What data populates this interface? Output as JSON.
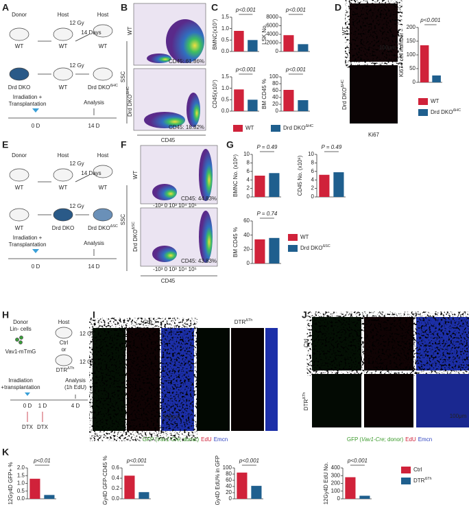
{
  "panel_labels": [
    "A",
    "B",
    "C",
    "D",
    "E",
    "F",
    "G",
    "H",
    "I",
    "J",
    "K"
  ],
  "A": {
    "texts": [
      "Donor",
      "Host",
      "Host",
      "12 Gy",
      "WT",
      "WT",
      "WT",
      "14 Days",
      "12 Gy",
      {
        "text": "Drd DKO"
      },
      "WT",
      {
        "text": "Drd DKO",
        "sup": "ΔHC"
      },
      "Irradiation +",
      "Transplantation",
      "Analysis",
      "0 D",
      "14 D"
    ]
  },
  "E": {
    "texts": [
      "Donor",
      "Host",
      "Host",
      "12 Gy",
      "WT",
      "WT",
      "WT",
      "14 Days",
      "12 Gy",
      "WT",
      {
        "text": "Drd DKO"
      },
      {
        "text": "Drd DKO",
        "sup": "ΔSC"
      },
      "Irradiation +",
      "Transplantation",
      "Analysis",
      "0 D",
      "14 D"
    ]
  },
  "H": {
    "texts": [
      "Donor",
      "Host",
      "Lin- cells",
      "12 Gy",
      "Ctrl",
      "or",
      "Vav1-mTmG",
      "12 Gy",
      {
        "text": "DTR",
        "sup": "ΔTh"
      },
      "Irradiation",
      "+transplantation",
      "Analysis",
      "(1h EdU)",
      "0 D",
      "1 D",
      "4 D",
      "DTX",
      "DTX"
    ]
  },
  "B": {
    "texts": [
      "WT",
      {
        "text": "Drd DKO",
        "sup": "ΔHC"
      },
      "SSC",
      "CD45",
      "CD45: 61.86%",
      "CD45: 18.82%"
    ]
  },
  "F": {
    "texts": [
      "WT",
      {
        "text": "Drd DKO",
        "sup": "ΔSC"
      },
      "SSC",
      "CD45",
      "CD45: 44.83%",
      "CD45: 43.83%",
      "-10³ 0 10³ 10⁴ 10⁵",
      "-10³ 0 10³ 10⁴ 10⁵"
    ]
  },
  "D": {
    "texts": [
      "WT",
      {
        "text": "Drd DKO",
        "sup": "ΔHC"
      },
      "100μm",
      "Ki67"
    ]
  },
  "I": {
    "texts": [
      "Ctrl",
      {
        "text": "DTR",
        "sup": "ΔTh"
      },
      "500μm"
    ]
  },
  "J": {
    "texts": [
      "Ctrl",
      {
        "text": "DTR",
        "sup": "ΔTh"
      },
      "100μm"
    ]
  },
  "captions": [
    [
      {
        "text": "GFP (",
        "color": "#3a9a2a"
      },
      {
        "text": "Vav1-Cre",
        "color": "#3a9a2a"
      },
      {
        "text": "; donor)",
        "color": "#3a9a2a"
      },
      {
        "text": "EdU",
        "color": "#d0223a"
      },
      {
        "text": "Emcn",
        "color": "#2a3fbf"
      }
    ],
    [
      {
        "text": "GFP (",
        "color": "#3a9a2a"
      },
      {
        "text": "Vav1-Cre",
        "color": "#3a9a2a"
      },
      {
        "text": "; donor)",
        "color": "#3a9a2a"
      },
      {
        "text": "EdU",
        "color": "#d0223a"
      },
      {
        "text": "Emcn",
        "color": "#2a3fbf"
      }
    ]
  ],
  "legends": [
    [
      {
        "name": {
          "text": "WT"
        },
        "color": "#d0223a"
      },
      {
        "name": {
          "text": "Drd DKO",
          "sup": "ΔHC"
        },
        "color": "#1f5f8e"
      }
    ],
    [
      {
        "name": {
          "text": "WT"
        },
        "color": "#d0223a"
      },
      {
        "name": {
          "text": "Drd DKO",
          "sup": "ΔHC"
        },
        "color": "#1f5f8e"
      }
    ],
    [
      {
        "name": {
          "text": "WT"
        },
        "color": "#d0223a"
      },
      {
        "name": {
          "text": "Drd DKO",
          "sup": "ΔSC"
        },
        "color": "#1f5f8e"
      }
    ],
    [
      {
        "name": {
          "text": "Ctrl"
        },
        "color": "#d0223a"
      },
      {
        "name": {
          "text": "DTR",
          "sup": "ΔTh"
        },
        "color": "#1f5f8e"
      }
    ]
  ],
  "chart_data": [
    {
      "type": "bar",
      "ylabel": "BMNC(x10⁷)",
      "annotation": "p<0.001",
      "values": [
        0.9,
        0.5
      ],
      "colors": [
        "#d0223a",
        "#1f5f8e"
      ],
      "ylim": [
        0,
        1.5
      ],
      "yticks": [
        {
          "value": 0,
          "label": "0.0"
        },
        0.5,
        {
          "value": 1,
          "label": "1.0"
        },
        1.5
      ]
    },
    {
      "type": "bar",
      "ylabel": "LSK No.",
      "annotation": "p<0.001",
      "values": [
        3800,
        1700
      ],
      "colors": [
        "#d0223a",
        "#1f5f8e"
      ],
      "ylim": [
        0,
        8000
      ],
      "yticks": [
        0,
        2000,
        4000,
        6000,
        8000
      ]
    },
    {
      "type": "bar",
      "ylabel": "CD45(x10⁷)",
      "annotation": "p<0.001",
      "values": [
        0.95,
        0.5
      ],
      "colors": [
        "#d0223a",
        "#1f5f8e"
      ],
      "ylim": [
        0,
        1.5
      ],
      "yticks": [
        {
          "value": 0,
          "label": "0.0"
        },
        0.5,
        {
          "value": 1,
          "label": "1.0"
        },
        1.5
      ]
    },
    {
      "type": "bar",
      "ylabel": "BM CD45 %",
      "annotation": "p<0.001",
      "values": [
        62,
        32
      ],
      "colors": [
        "#d0223a",
        "#1f5f8e"
      ],
      "ylim": [
        0,
        100
      ],
      "yticks": [
        0,
        20,
        40,
        60,
        80,
        100
      ]
    },
    {
      "type": "bar",
      "ylabel": "Ki67+ cell number",
      "annotation": "p<0.001",
      "values": [
        135,
        25
      ],
      "colors": [
        "#d0223a",
        "#1f5f8e"
      ],
      "ylim": [
        0,
        200
      ],
      "yticks": [
        0,
        50,
        100,
        150,
        200
      ]
    },
    {
      "type": "bar",
      "ylabel": "BMNC No. (x10⁶)",
      "annotation": "P = 0.49",
      "values": [
        5.0,
        5.6
      ],
      "colors": [
        "#d0223a",
        "#1f5f8e"
      ],
      "ylim": [
        0,
        10
      ],
      "yticks": [
        0,
        2,
        4,
        6,
        8,
        10
      ]
    },
    {
      "type": "bar",
      "ylabel": "CD45 No. (x10⁶)",
      "annotation": "P = 0.49",
      "values": [
        5.2,
        5.8
      ],
      "colors": [
        "#d0223a",
        "#1f5f8e"
      ],
      "ylim": [
        0,
        10
      ],
      "yticks": [
        0,
        2,
        4,
        6,
        8,
        10
      ]
    },
    {
      "type": "bar",
      "ylabel": "BM CD45 %",
      "annotation": "P = 0.74",
      "values": [
        34,
        36
      ],
      "colors": [
        "#d0223a",
        "#1f5f8e"
      ],
      "ylim": [
        0,
        60
      ],
      "yticks": [
        0,
        20,
        40,
        60
      ]
    },
    {
      "type": "bar",
      "ylabel": "12Gy4D GFP+ %",
      "annotation": "p<0.01",
      "values": [
        1.3,
        0.25
      ],
      "colors": [
        "#d0223a",
        "#1f5f8e"
      ],
      "ylim": [
        0,
        2
      ],
      "yticks": [
        {
          "value": 0,
          "label": "0.0"
        },
        0.5,
        {
          "value": 1,
          "label": "1.0"
        },
        1.5,
        {
          "value": 2,
          "label": "2.0"
        }
      ]
    },
    {
      "type": "bar",
      "ylabel": "12Gy4D GFP-CD45 %",
      "annotation": "p<0.001",
      "values": [
        0.45,
        0.13
      ],
      "colors": [
        "#d0223a",
        "#1f5f8e"
      ],
      "ylim": [
        0,
        0.6
      ],
      "yticks": [
        {
          "value": 0,
          "label": "0.0"
        },
        0.2,
        0.4,
        0.6
      ]
    },
    {
      "type": "bar",
      "ylabel": "12Gy4D EdU% in GFP",
      "annotation": "p<0.001",
      "values": [
        85,
        42
      ],
      "colors": [
        "#d0223a",
        "#1f5f8e"
      ],
      "ylim": [
        0,
        100
      ],
      "yticks": [
        0,
        20,
        40,
        60,
        80,
        100
      ]
    },
    {
      "type": "bar",
      "ylabel": "12Gy4D EdU No.",
      "annotation": "p<0.001",
      "values": [
        280,
        40
      ],
      "colors": [
        "#d0223a",
        "#1f5f8e"
      ],
      "ylim": [
        0,
        400
      ],
      "yticks": [
        0,
        100,
        200,
        300,
        400
      ]
    }
  ]
}
